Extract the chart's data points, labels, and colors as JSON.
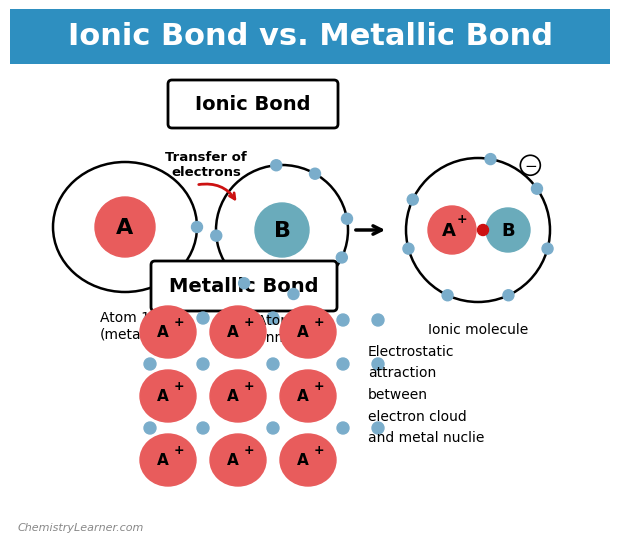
{
  "title": "Ionic Bond vs. Metallic Bond",
  "title_bg": "#2e8fc0",
  "title_color": "white",
  "bg_color": "white",
  "ionic_bond_label": "Ionic Bond",
  "metallic_bond_label": "Metallic Bond",
  "atom1_label": "A",
  "atom2_label": "B",
  "atom1_color": "#e85c5c",
  "atom2_color": "#6aabbb",
  "atom1_sublabel": "Atom 1\n(metal)",
  "atom2_sublabel": "Atom 2\n(nonmetal)",
  "transfer_text": "Transfer of\nelectrons",
  "ionic_molecule_label": "Ionic molecule",
  "electron_color": "#7aadcb",
  "metallic_text": "Electrostatic\nattraction\nbetween\nelectron cloud\nand metal nuclie",
  "watermark": "ChemistryLearner.com",
  "metal_ion_color": "#e85c5c"
}
